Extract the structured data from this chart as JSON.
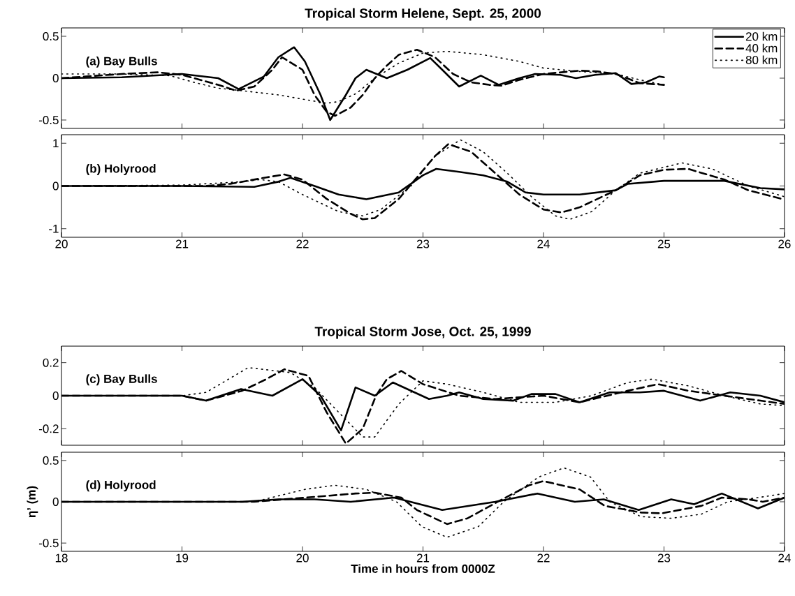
{
  "chart_data": [
    {
      "type": "line",
      "title": "Tropical Storm Helene, Sept. 25, 2000",
      "annotations": [
        "(a) Bay Bulls"
      ],
      "xlim": [
        20,
        26
      ],
      "xticks": [
        20,
        21,
        22,
        23,
        24,
        25,
        26
      ],
      "ylim": [
        -0.6,
        0.6
      ],
      "yticks": [
        -0.5,
        0,
        0.5
      ],
      "tick_labels": "y",
      "legend": "top right",
      "series": [
        {
          "name": "20 km",
          "color": "#000000",
          "line_style": "solid",
          "x": [
            20,
            20.5,
            21,
            21.3,
            21.47,
            21.68,
            21.8,
            21.93,
            22.02,
            22.15,
            22.23,
            22.36,
            22.44,
            22.53,
            22.7,
            22.87,
            23.06,
            23.16,
            23.3,
            23.48,
            23.63,
            23.8,
            23.93,
            24.14,
            24.27,
            24.43,
            24.6,
            24.73,
            24.85,
            24.96,
            25
          ],
          "values": [
            0,
            0.01,
            0.05,
            0.0,
            -0.13,
            0.02,
            0.25,
            0.37,
            0.2,
            -0.2,
            -0.5,
            -0.2,
            0.0,
            0.1,
            0.0,
            0.1,
            0.24,
            0.1,
            -0.1,
            0.03,
            -0.08,
            0.0,
            0.05,
            0.04,
            0.0,
            0.04,
            0.06,
            -0.07,
            -0.05,
            0.02,
            0.01
          ]
        },
        {
          "name": "40 km",
          "color": "#000000",
          "line_style": "dashed",
          "x": [
            20,
            20.5,
            20.8,
            21,
            21.3,
            21.45,
            21.6,
            21.75,
            21.83,
            22,
            22.1,
            22.2,
            22.27,
            22.4,
            22.5,
            22.6,
            22.7,
            22.8,
            22.95,
            23.1,
            23.25,
            23.4,
            23.55,
            23.65,
            23.8,
            24,
            24.3,
            24.45,
            24.6,
            24.8,
            25
          ],
          "values": [
            0,
            0.05,
            0.07,
            0.04,
            -0.08,
            -0.15,
            -0.1,
            0.1,
            0.25,
            0.1,
            -0.2,
            -0.4,
            -0.45,
            -0.35,
            -0.2,
            0,
            0.15,
            0.28,
            0.34,
            0.25,
            0.05,
            -0.05,
            -0.08,
            -0.09,
            -0.02,
            0.05,
            0.09,
            0.08,
            0.05,
            -0.06,
            -0.08
          ]
        },
        {
          "name": "80 km",
          "color": "#000000",
          "line_style": "dotted",
          "x": [
            20,
            20.5,
            20.9,
            21.1,
            21.3,
            21.5,
            21.8,
            22,
            22.2,
            22.3,
            22.45,
            22.6,
            22.8,
            23,
            23.2,
            23.5,
            23.8,
            24,
            24.3,
            24.6,
            24.8,
            25
          ],
          "values": [
            0.05,
            0.05,
            0.03,
            -0.05,
            -0.12,
            -0.15,
            -0.2,
            -0.25,
            -0.3,
            -0.28,
            -0.18,
            0,
            0.18,
            0.3,
            0.32,
            0.28,
            0.2,
            0.12,
            0.08,
            0.05,
            -0.02,
            -0.08
          ]
        }
      ]
    },
    {
      "type": "line",
      "annotations": [
        "(b) Holyrood"
      ],
      "xlim": [
        20,
        26
      ],
      "xticks": [
        20,
        21,
        22,
        23,
        24,
        25,
        26
      ],
      "ylim": [
        -1.2,
        1.2
      ],
      "yticks": [
        -1,
        0,
        1
      ],
      "series": [
        {
          "color": "#000000",
          "line_style": "solid",
          "x": [
            20,
            21,
            21.6,
            21.8,
            21.9,
            22.1,
            22.3,
            22.53,
            22.8,
            23,
            23.11,
            23.3,
            23.5,
            23.7,
            23.85,
            24,
            24.3,
            24.6,
            24.7,
            25,
            25.5,
            25.8,
            26
          ],
          "values": [
            0,
            0,
            -0.02,
            0.1,
            0.19,
            0,
            -0.2,
            -0.31,
            -0.15,
            0.25,
            0.4,
            0.33,
            0.25,
            0.1,
            -0.15,
            -0.2,
            -0.2,
            -0.1,
            0.05,
            0.12,
            0.12,
            -0.05,
            -0.08
          ]
        },
        {
          "color": "#000000",
          "line_style": "dashed",
          "x": [
            20,
            21.2,
            21.4,
            21.7,
            21.85,
            22,
            22.2,
            22.4,
            22.5,
            22.6,
            22.8,
            22.95,
            23.1,
            23.21,
            23.4,
            23.6,
            23.8,
            24,
            24.15,
            24.3,
            24.6,
            24.8,
            25,
            25.2,
            25.5,
            25.7,
            26
          ],
          "values": [
            0,
            0,
            0.05,
            0.2,
            0.27,
            0.15,
            -0.3,
            -0.65,
            -0.78,
            -0.75,
            -0.3,
            0.2,
            0.7,
            0.98,
            0.8,
            0.3,
            -0.2,
            -0.55,
            -0.62,
            -0.5,
            -0.1,
            0.25,
            0.38,
            0.4,
            0.15,
            -0.1,
            -0.32
          ]
        },
        {
          "color": "#000000",
          "line_style": "dotted",
          "x": [
            20,
            21,
            21.5,
            21.65,
            21.8,
            22,
            22.3,
            22.5,
            22.65,
            22.9,
            23.1,
            23.31,
            23.5,
            23.7,
            23.9,
            24.1,
            24.22,
            24.4,
            24.6,
            24.8,
            25.15,
            25.4,
            25.7,
            26
          ],
          "values": [
            0,
            0.02,
            0.1,
            0.15,
            0.1,
            -0.2,
            -0.6,
            -0.7,
            -0.55,
            0,
            0.7,
            1.08,
            0.8,
            0.3,
            -0.25,
            -0.7,
            -0.78,
            -0.6,
            -0.1,
            0.3,
            0.54,
            0.4,
            0,
            -0.25
          ]
        }
      ]
    },
    {
      "type": "line",
      "title": "Tropical Storm Jose, Oct. 25, 1999",
      "annotations": [
        "(c) Bay Bulls"
      ],
      "xlim": [
        18,
        24
      ],
      "xticks": [
        18,
        19,
        20,
        21,
        22,
        23,
        24
      ],
      "ylim": [
        -0.3,
        0.3
      ],
      "yticks": [
        -0.2,
        0,
        0.2
      ],
      "tick_labels": "y",
      "series": [
        {
          "color": "#000000",
          "line_style": "solid",
          "x": [
            18,
            19,
            19.2,
            19.49,
            19.75,
            20,
            20.15,
            20.32,
            20.44,
            20.6,
            20.75,
            20.9,
            21.05,
            21.2,
            21.3,
            21.5,
            21.75,
            21.9,
            22.1,
            22.3,
            22.55,
            22.8,
            23,
            23.3,
            23.55,
            23.8,
            24
          ],
          "values": [
            0,
            0,
            -0.03,
            0.04,
            0,
            0.1,
            0,
            -0.21,
            0.05,
            0,
            0.08,
            0.03,
            -0.02,
            0,
            0.02,
            -0.02,
            -0.03,
            0.01,
            0.01,
            -0.04,
            0.02,
            0.02,
            0.03,
            -0.03,
            0.02,
            0,
            -0.04
          ]
        },
        {
          "color": "#000000",
          "line_style": "dashed",
          "x": [
            18,
            19,
            19.2,
            19.5,
            19.7,
            19.85,
            20.05,
            20.2,
            20.36,
            20.5,
            20.61,
            20.7,
            20.82,
            21,
            21.3,
            21.6,
            22,
            22.3,
            22.7,
            22.95,
            23.2,
            23.5,
            23.8,
            24
          ],
          "values": [
            0,
            0,
            -0.03,
            0.03,
            0.1,
            0.16,
            0.12,
            -0.1,
            -0.29,
            -0.2,
            0,
            0.1,
            0.15,
            0.07,
            0,
            -0.02,
            0,
            -0.04,
            0.03,
            0.07,
            0.03,
            0,
            -0.03,
            -0.05
          ]
        },
        {
          "color": "#000000",
          "line_style": "dotted",
          "x": [
            18,
            19,
            19.2,
            19.55,
            19.9,
            20.1,
            20.3,
            20.5,
            20.6,
            20.8,
            21,
            21.2,
            21.5,
            21.8,
            22.1,
            22.4,
            22.7,
            22.9,
            23.2,
            23.5,
            23.8,
            24
          ],
          "values": [
            0,
            0,
            0.02,
            0.17,
            0.14,
            0.05,
            -0.1,
            -0.25,
            -0.25,
            -0.05,
            0.09,
            0.07,
            0.02,
            -0.04,
            -0.04,
            0,
            0.08,
            0.1,
            0.06,
            0,
            -0.05,
            -0.06
          ]
        }
      ]
    },
    {
      "type": "line",
      "annotations": [
        "(d) Holyrood"
      ],
      "xlabel": "Time in hours from 0000Z",
      "ylabel": "η’ (m)",
      "xlim": [
        18,
        24
      ],
      "xticks": [
        18,
        19,
        20,
        21,
        22,
        23,
        24
      ],
      "ylim": [
        -0.6,
        0.6
      ],
      "yticks": [
        -0.5,
        0,
        0.5
      ],
      "series": [
        {
          "color": "#000000",
          "line_style": "solid",
          "x": [
            18,
            19.5,
            19.8,
            20.1,
            20.4,
            20.76,
            21.16,
            21.6,
            21.95,
            22.26,
            22.5,
            22.79,
            23.06,
            23.25,
            23.48,
            23.78,
            24
          ],
          "values": [
            0,
            0,
            0.03,
            0.03,
            0,
            0.05,
            -0.1,
            0,
            0.1,
            0,
            0.03,
            -0.1,
            0.03,
            -0.03,
            0.1,
            -0.08,
            0.05
          ]
        },
        {
          "color": "#000000",
          "line_style": "dashed",
          "x": [
            18,
            19.6,
            20.44,
            20.6,
            20.82,
            20.95,
            21.2,
            21.37,
            21.62,
            21.88,
            22,
            22.3,
            22.51,
            22.81,
            22.98,
            23.31,
            23.48,
            23.7,
            23.82,
            24
          ],
          "values": [
            0,
            0,
            0.1,
            0.11,
            0.05,
            -0.1,
            -0.27,
            -0.2,
            0,
            0.2,
            0.25,
            0.15,
            -0.05,
            -0.13,
            -0.14,
            -0.05,
            0.05,
            0.03,
            0,
            0.05
          ]
        },
        {
          "color": "#000000",
          "line_style": "dotted",
          "x": [
            18,
            19.6,
            20.02,
            20.27,
            20.53,
            20.78,
            20.99,
            21.2,
            21.46,
            21.67,
            21.96,
            22.17,
            22.39,
            22.55,
            22.81,
            23.06,
            23.31,
            23.53,
            23.78,
            24
          ],
          "values": [
            0,
            0,
            0.15,
            0.2,
            0.15,
            0,
            -0.3,
            -0.43,
            -0.3,
            0,
            0.3,
            0.41,
            0.3,
            0,
            -0.18,
            -0.2,
            -0.15,
            0,
            0.05,
            0.1
          ]
        }
      ]
    }
  ]
}
